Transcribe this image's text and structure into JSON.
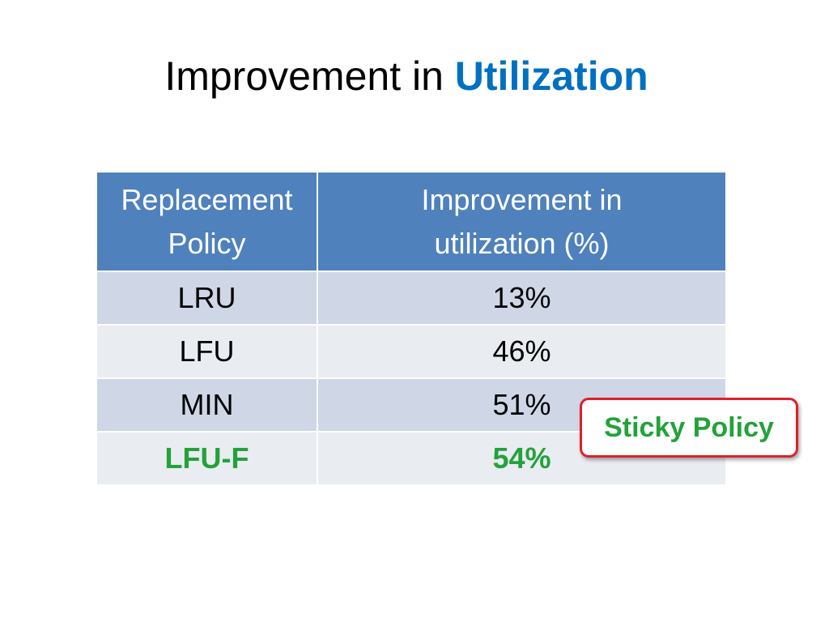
{
  "slide": {
    "title_main": "Improvement in ",
    "title_highlight": "Utilization",
    "colors": {
      "title_highlight": "#0070c0",
      "header_background": "#4f81bd",
      "row_odd": "#cfd7e6",
      "row_even": "#e9ecf1",
      "highlight_text": "#23a23a",
      "callout_border": "#e0202a"
    }
  },
  "table": {
    "headers": {
      "policy_line1": "Replacement",
      "policy_line2": "Policy",
      "improvement_line1": "Improvement in",
      "improvement_line2": "utilization (%)"
    },
    "rows": [
      {
        "policy": "LRU",
        "improvement": "13%"
      },
      {
        "policy": "LFU",
        "improvement": "46%"
      },
      {
        "policy": "MIN",
        "improvement": "51%"
      },
      {
        "policy": "LFU-F",
        "improvement": "54%"
      }
    ]
  },
  "callout": {
    "label": "Sticky Policy"
  }
}
